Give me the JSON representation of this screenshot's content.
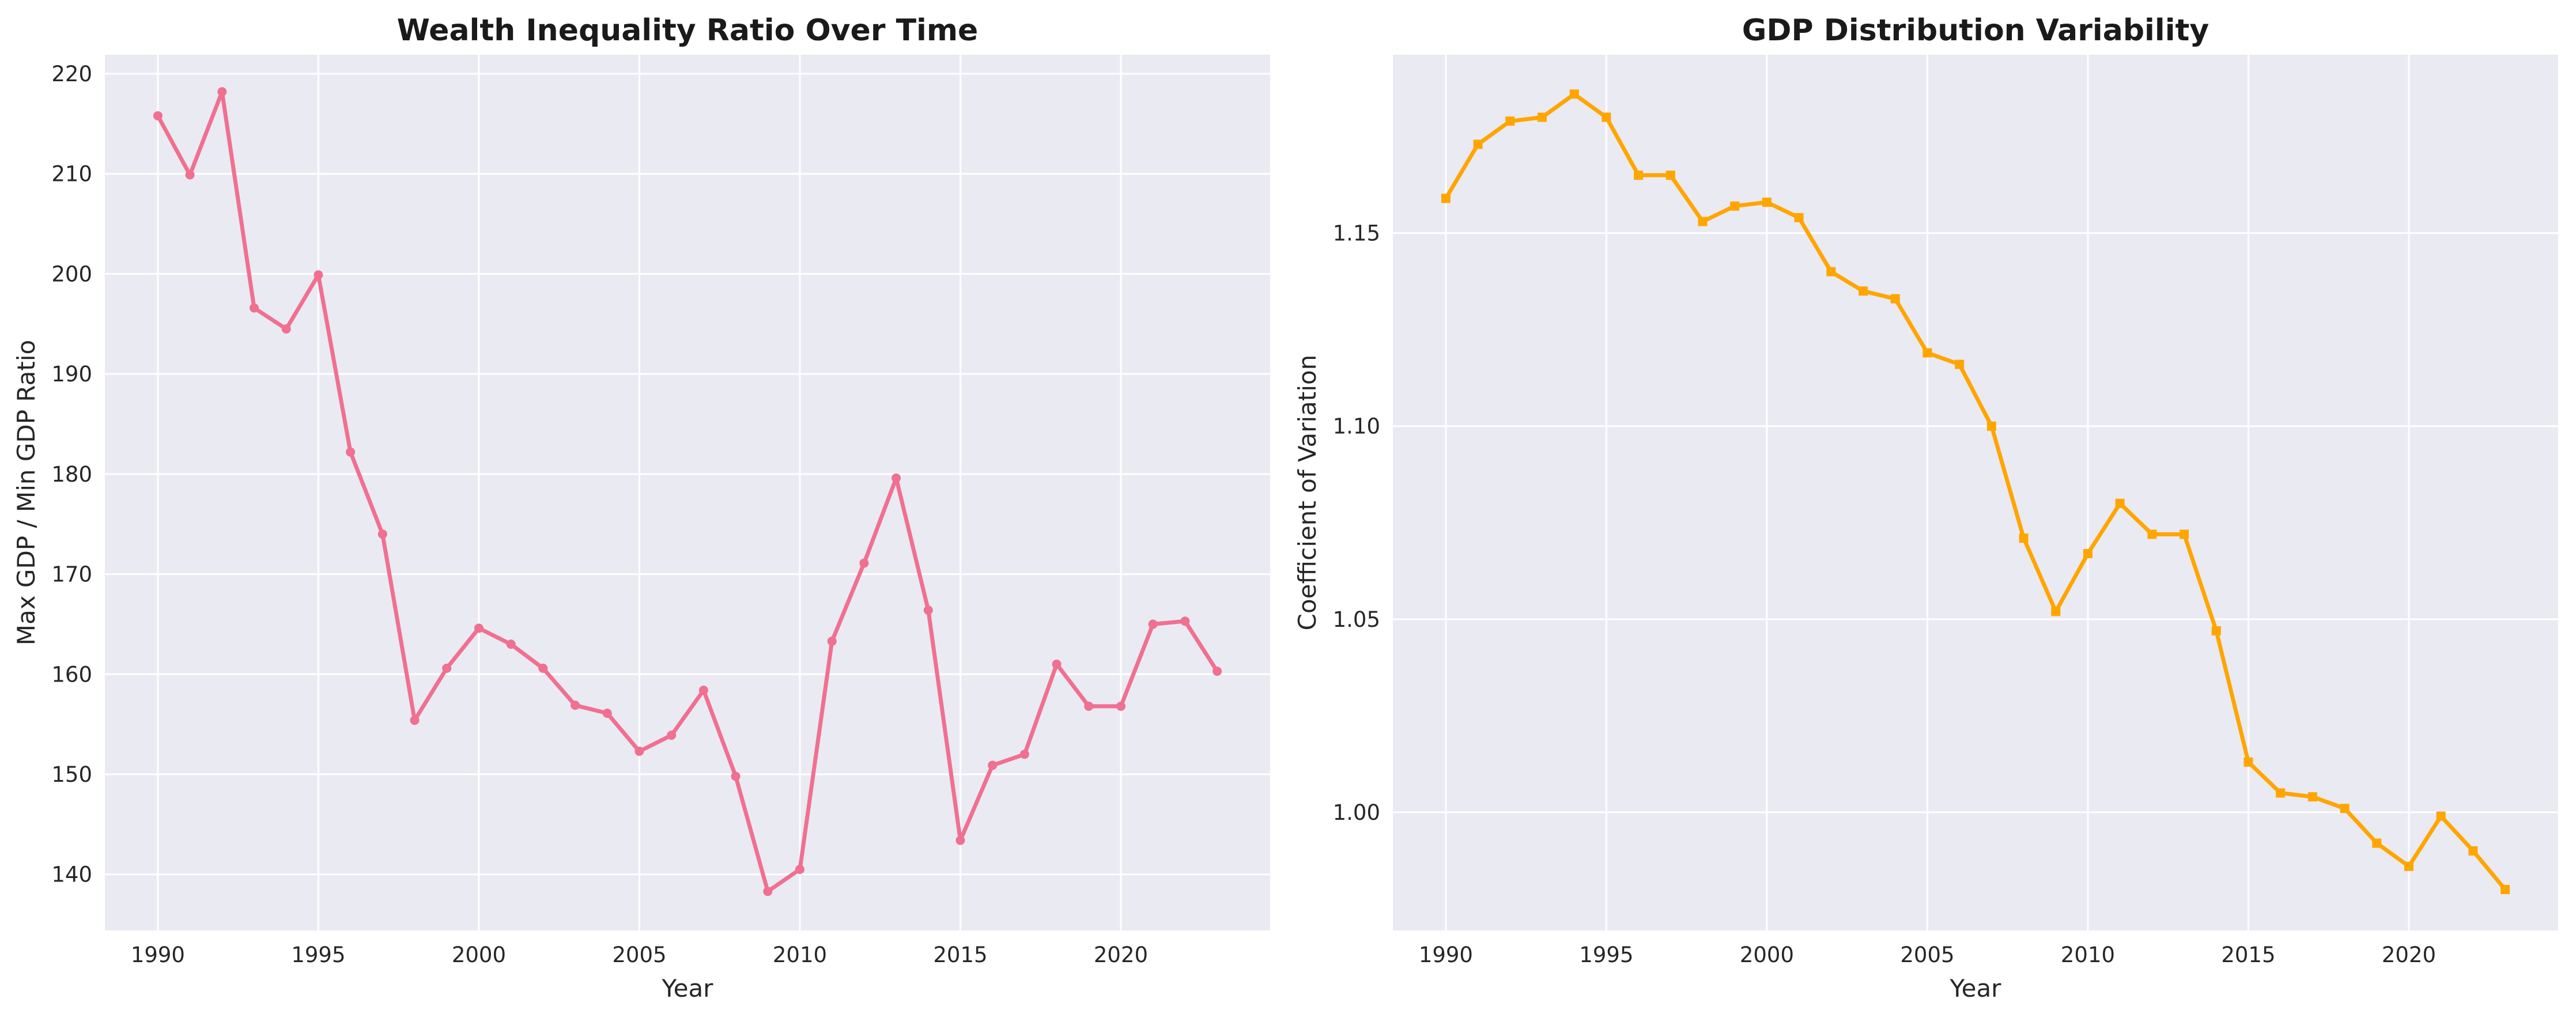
{
  "chart_data": [
    {
      "type": "line",
      "title": "Wealth Inequality Ratio Over Time",
      "xlabel": "Year",
      "ylabel": "Max GDP / Min GDP Ratio",
      "xlim": [
        1988.35,
        2024.65
      ],
      "ylim": [
        134.4,
        221.9
      ],
      "xticks": [
        1990,
        1995,
        2000,
        2005,
        2010,
        2015,
        2020
      ],
      "xtick_labels": [
        "1990",
        "1995",
        "2000",
        "2005",
        "2010",
        "2015",
        "2020"
      ],
      "yticks": [
        140,
        150,
        160,
        170,
        180,
        190,
        200,
        210,
        220
      ],
      "ytick_labels": [
        "140",
        "150",
        "160",
        "170",
        "180",
        "190",
        "200",
        "210",
        "220"
      ],
      "grid": true,
      "color": "#f07090",
      "marker": "circle",
      "series": [
        {
          "x": [
            1990,
            1991,
            1992,
            1993,
            1994,
            1995,
            1996,
            1997,
            1998,
            1999,
            2000,
            2001,
            2002,
            2003,
            2004,
            2005,
            2006,
            2007,
            2008,
            2009,
            2010,
            2011,
            2012,
            2013,
            2014,
            2015,
            2016,
            2017,
            2018,
            2019,
            2020,
            2021,
            2022,
            2023
          ],
          "y": [
            215.8,
            209.9,
            218.2,
            196.6,
            194.5,
            199.9,
            182.2,
            174.0,
            155.4,
            160.6,
            164.6,
            163.0,
            160.6,
            156.9,
            156.1,
            152.3,
            153.9,
            158.4,
            149.8,
            138.3,
            140.5,
            163.3,
            171.1,
            179.6,
            166.4,
            143.4,
            150.9,
            152.0,
            161.0,
            156.8,
            156.8,
            165.0,
            165.3,
            160.3
          ]
        }
      ]
    },
    {
      "type": "line",
      "title": "GDP Distribution Variability",
      "xlabel": "Year",
      "ylabel": "Coefficient of Variation",
      "xlim": [
        1988.35,
        2024.65
      ],
      "ylim": [
        0.9694,
        1.1962
      ],
      "xticks": [
        1990,
        1995,
        2000,
        2005,
        2010,
        2015,
        2020
      ],
      "xtick_labels": [
        "1990",
        "1995",
        "2000",
        "2005",
        "2010",
        "2015",
        "2020"
      ],
      "yticks": [
        1.0,
        1.05,
        1.1,
        1.15
      ],
      "ytick_labels": [
        "1.00",
        "1.05",
        "1.10",
        "1.15"
      ],
      "grid": true,
      "color": "#ffa500",
      "marker": "square",
      "series": [
        {
          "x": [
            1990,
            1991,
            1992,
            1993,
            1994,
            1995,
            1996,
            1997,
            1998,
            1999,
            2000,
            2001,
            2002,
            2003,
            2004,
            2005,
            2006,
            2007,
            2008,
            2009,
            2010,
            2011,
            2012,
            2013,
            2014,
            2015,
            2016,
            2017,
            2018,
            2019,
            2020,
            2021,
            2022,
            2023
          ],
          "y": [
            1.159,
            1.173,
            1.179,
            1.18,
            1.186,
            1.18,
            1.165,
            1.165,
            1.153,
            1.157,
            1.158,
            1.154,
            1.14,
            1.135,
            1.133,
            1.119,
            1.116,
            1.1,
            1.071,
            1.052,
            1.067,
            1.08,
            1.072,
            1.072,
            1.047,
            1.013,
            1.005,
            1.004,
            1.001,
            0.992,
            0.986,
            0.999,
            0.99,
            0.98
          ]
        }
      ]
    }
  ]
}
